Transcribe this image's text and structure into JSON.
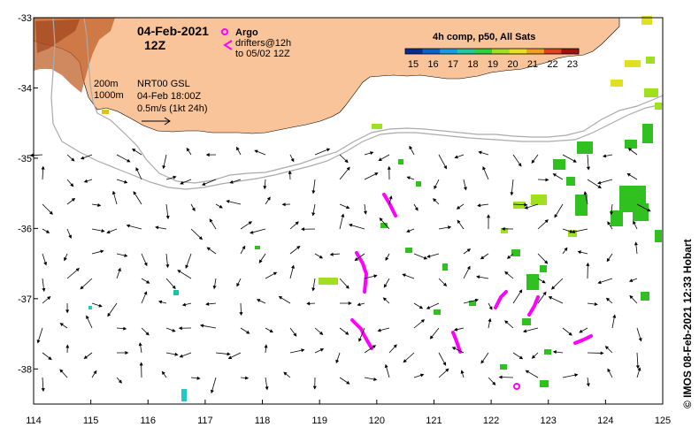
{
  "map": {
    "date_label": "04-Feb-2021",
    "time_label": "12Z",
    "legend": {
      "argo_label": "Argo",
      "drifters_label": "drifters@12h",
      "drifters_until": "to 05/02 12Z"
    },
    "contours": [
      "200m",
      "1000m"
    ],
    "current_info": {
      "product": "NRT00 GSL",
      "valid": "04-Feb 18:00Z",
      "scale": "0.5m/s (1kt 24h)"
    },
    "colorbar": {
      "title": "4h comp, p50, All Sats",
      "ticks": [
        "15",
        "16",
        "17",
        "18",
        "19",
        "20",
        "21",
        "22",
        "23"
      ],
      "colors": [
        "#0a2a9a",
        "#0a60d0",
        "#10a0e0",
        "#20c8a0",
        "#30d040",
        "#a0e020",
        "#e8e020",
        "#f0a020",
        "#e04020",
        "#a01010"
      ]
    },
    "axes": {
      "lon_ticks": [
        114,
        115,
        116,
        117,
        118,
        119,
        120,
        121,
        122,
        123,
        124,
        125
      ],
      "lat_ticks": [
        -33,
        -34,
        -35,
        -36,
        -37,
        -38
      ],
      "lon_range": [
        114,
        125
      ],
      "lat_range": [
        -38.5,
        -33
      ]
    },
    "credit": "© IMOS 08-Feb-2021 12:33 Hobart",
    "colors": {
      "land": "#f9c49a",
      "cyan_sst": "#20c8c8",
      "green_sst": "#20c020",
      "lime_sst": "#a0e020",
      "yellow_sst": "#e0e020",
      "drifter": "#ff00ff"
    }
  }
}
